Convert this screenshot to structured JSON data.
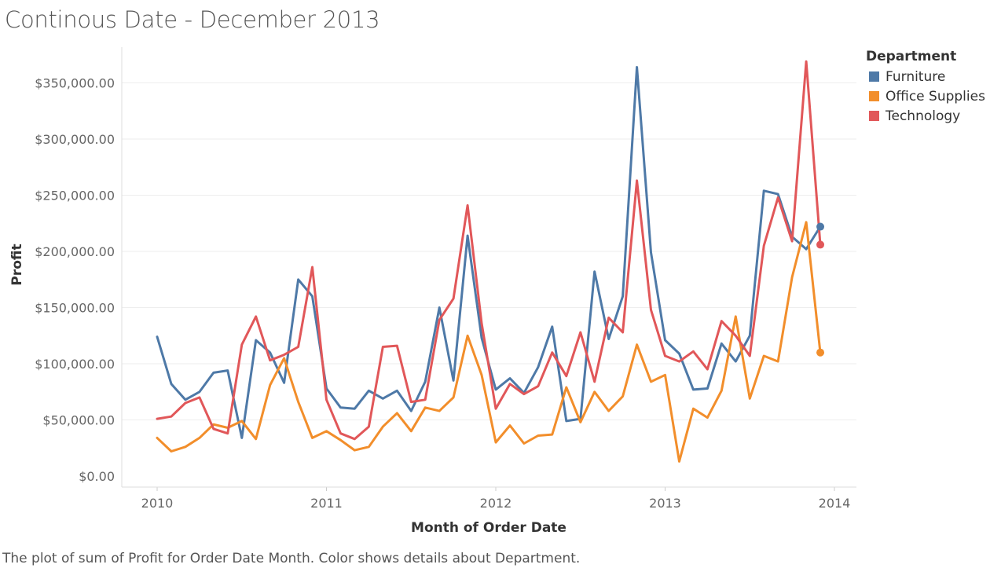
{
  "title": "Continous Date - December 2013",
  "caption": "The plot of sum of Profit for Order Date Month.  Color shows details about Department.",
  "chart_data": {
    "type": "line",
    "title": "Continous Date - December 2013",
    "xlabel": "Month of Order Date",
    "ylabel": "Profit",
    "x_ticks": [
      "2010",
      "2011",
      "2012",
      "2013",
      "2014"
    ],
    "y_ticks": [
      "$0.00",
      "$50,000.00",
      "$100,000.00",
      "$150,000.00",
      "$200,000.00",
      "$250,000.00",
      "$300,000.00",
      "$350,000.00"
    ],
    "ylim": [
      0,
      380000
    ],
    "x": [
      "2010-01",
      "2010-02",
      "2010-03",
      "2010-04",
      "2010-05",
      "2010-06",
      "2010-07",
      "2010-08",
      "2010-09",
      "2010-10",
      "2010-11",
      "2010-12",
      "2011-01",
      "2011-02",
      "2011-03",
      "2011-04",
      "2011-05",
      "2011-06",
      "2011-07",
      "2011-08",
      "2011-09",
      "2011-10",
      "2011-11",
      "2011-12",
      "2012-01",
      "2012-02",
      "2012-03",
      "2012-04",
      "2012-05",
      "2012-06",
      "2012-07",
      "2012-08",
      "2012-09",
      "2012-10",
      "2012-11",
      "2012-12",
      "2013-01",
      "2013-02",
      "2013-03",
      "2013-04",
      "2013-05",
      "2013-06",
      "2013-07",
      "2013-08",
      "2013-09",
      "2013-10",
      "2013-11",
      "2013-12"
    ],
    "legend_title": "Department",
    "legend_position": "top-right",
    "grid": true,
    "series": [
      {
        "name": "Furniture",
        "color": "#4e79a7",
        "values": [
          124000,
          82000,
          68000,
          75000,
          92000,
          94000,
          34000,
          121000,
          110000,
          83000,
          175000,
          160000,
          78000,
          61000,
          60000,
          76000,
          69000,
          76000,
          58000,
          84000,
          150000,
          85000,
          214000,
          123000,
          77000,
          87000,
          74000,
          97000,
          133000,
          49000,
          51000,
          182000,
          122000,
          160000,
          364000,
          199000,
          121000,
          109000,
          77000,
          78000,
          118000,
          102000,
          125000,
          254000,
          251000,
          213000,
          202000,
          222000
        ]
      },
      {
        "name": "Office Supplies",
        "color": "#f28e2b",
        "values": [
          34000,
          22000,
          26000,
          34000,
          46000,
          43000,
          49000,
          33000,
          81000,
          105000,
          66000,
          34000,
          40000,
          32000,
          23000,
          26000,
          44000,
          56000,
          40000,
          61000,
          58000,
          70000,
          125000,
          90000,
          30000,
          45000,
          29000,
          36000,
          37000,
          79000,
          48000,
          75000,
          58000,
          71000,
          117000,
          84000,
          90000,
          13000,
          60000,
          52000,
          76000,
          142000,
          69000,
          107000,
          102000,
          177000,
          226000,
          110000
        ]
      },
      {
        "name": "Technology",
        "color": "#e15759",
        "values": [
          51000,
          53000,
          65000,
          70000,
          42000,
          38000,
          117000,
          142000,
          103000,
          108000,
          115000,
          186000,
          68000,
          38000,
          33000,
          44000,
          115000,
          116000,
          66000,
          68000,
          139000,
          158000,
          241000,
          136000,
          60000,
          82000,
          73000,
          80000,
          110000,
          89000,
          128000,
          84000,
          141000,
          128000,
          263000,
          148000,
          107000,
          102000,
          111000,
          95000,
          138000,
          125000,
          107000,
          205000,
          248000,
          209000,
          369000,
          206000
        ]
      }
    ]
  }
}
